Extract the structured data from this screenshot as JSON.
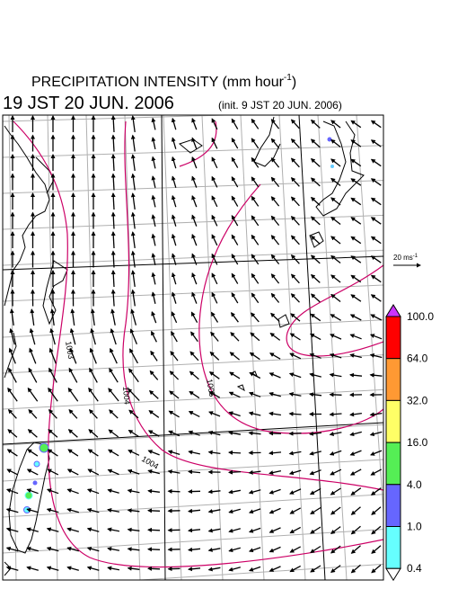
{
  "title": {
    "text": "PRECIPITATION INTENSITY (mm hour",
    "superscript": "-1",
    "close": ")"
  },
  "valid_time": "19 JST 20 JUN. 2006",
  "init_time": "(init. 9 JST 20 JUN. 2006)",
  "reference_vector": {
    "text": "20 ms",
    "superscript": "-1"
  },
  "colorbar": {
    "labels": [
      "100.0",
      "64.0",
      "32.0",
      "16.0",
      "4.0",
      "1.0",
      "0.4"
    ],
    "colors": [
      "#ff0000",
      "#ff9933",
      "#ffff66",
      "#55ee55",
      "#6666ff",
      "#66ffff"
    ],
    "over_color": "#cc33ff",
    "under_color": "#ffffff"
  },
  "isobar_labels": [
    "1003",
    "1004",
    "1005",
    "1004"
  ]
}
